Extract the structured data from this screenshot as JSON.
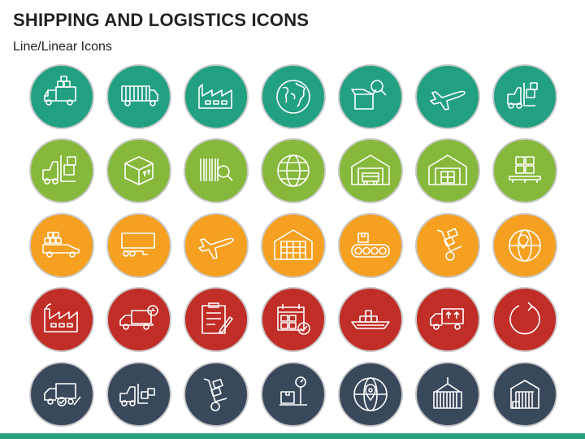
{
  "header": {
    "title": "SHIPPING AND LOGISTICS ICONS",
    "subtitle": "Line/Linear Icons"
  },
  "colors": {
    "row1": "#22A082",
    "row2": "#86B83B",
    "row3": "#F5A020",
    "row4": "#C12D27",
    "row5": "#3A485C",
    "ring": "#C9C9C9",
    "line": "#FFFFFF",
    "bar": "#26A07C"
  },
  "rows": [
    {
      "icons": [
        "delivery-truck-boxes-icon",
        "cargo-truck-icon",
        "factory-icon",
        "globe-icon",
        "box-search-icon",
        "airplane-icon",
        "forklift-icon"
      ]
    },
    {
      "icons": [
        "forklift-boxes-icon",
        "package-box-icon",
        "barcode-search-icon",
        "globe-grid-icon",
        "warehouse-truck-icon",
        "warehouse-icon",
        "stacked-boxes-icon"
      ]
    },
    {
      "icons": [
        "van-boxes-icon",
        "trailer-icon",
        "airplane-icon",
        "warehouse-building-icon",
        "conveyor-belt-icon",
        "hand-truck-icon",
        "globe-pin-icon"
      ]
    },
    {
      "icons": [
        "factory-icon",
        "truck-clock-icon",
        "checklist-icon",
        "calendar-check-icon",
        "cargo-ship-icon",
        "truck-arrows-icon",
        "refresh-icon"
      ]
    },
    {
      "icons": [
        "truck-check-icon",
        "forklift-truck-icon",
        "hand-truck-icon",
        "weighing-scale-icon",
        "globe-location-icon",
        "shipping-container-icon",
        "storage-unit-icon"
      ]
    }
  ]
}
